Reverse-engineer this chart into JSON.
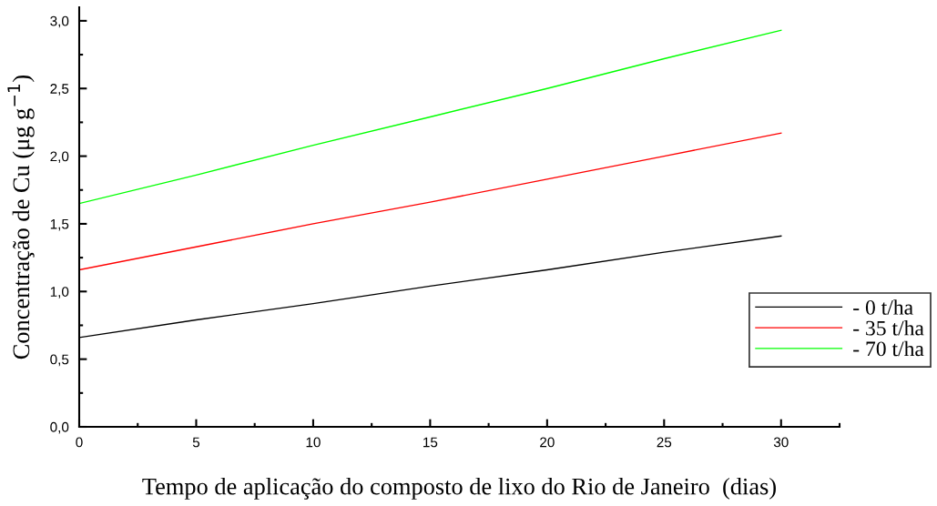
{
  "chart_data": {
    "type": "line",
    "xlabel": "Tempo de aplicação do composto de lixo do Rio de Janeiro  (dias)",
    "ylabel": "Concentração de Cu (μg g$^{−1}$)",
    "x": [
      0,
      5,
      10,
      15,
      20,
      25,
      30
    ],
    "series": [
      {
        "name": "- 0 t/ha",
        "color": "#000000",
        "values": [
          0.66,
          0.79,
          0.91,
          1.04,
          1.16,
          1.29,
          1.41
        ]
      },
      {
        "name": "- 35 t/ha",
        "color": "#ff0000",
        "values": [
          1.16,
          1.33,
          1.5,
          1.66,
          1.83,
          2.0,
          2.17
        ]
      },
      {
        "name": "- 70 t/ha",
        "color": "#00ff00",
        "values": [
          1.65,
          1.86,
          2.08,
          2.29,
          2.5,
          2.72,
          2.93
        ]
      }
    ],
    "xlim": [
      0,
      32.5
    ],
    "ylim": [
      0,
      3.1
    ],
    "xticks": [
      0,
      {
        "value": 2.5,
        "label": null
      },
      5,
      {
        "value": 7.5,
        "label": null
      },
      10,
      {
        "value": 12.5,
        "label": null
      },
      15,
      {
        "value": 17.5,
        "label": null
      },
      20,
      {
        "value": 22.5,
        "label": null
      },
      25,
      {
        "value": 27.5,
        "label": null
      },
      30,
      {
        "value": 32.5,
        "label": null
      }
    ],
    "yticks": [
      {
        "value": 0,
        "label": "0,0"
      },
      {
        "value": 0.25,
        "label": null
      },
      {
        "value": 0.5,
        "label": "0,5"
      },
      {
        "value": 0.75,
        "label": null
      },
      {
        "value": 1.0,
        "label": "1,0"
      },
      {
        "value": 1.25,
        "label": null
      },
      {
        "value": 1.5,
        "label": "1,5"
      },
      {
        "value": 1.75,
        "label": null
      },
      {
        "value": 2.0,
        "label": "2,0"
      },
      {
        "value": 2.25,
        "label": null
      },
      {
        "value": 2.5,
        "label": "2,5"
      },
      {
        "value": 2.75,
        "label": null
      },
      {
        "value": 3.0,
        "label": "3,0"
      }
    ],
    "grid": false,
    "legend": "right",
    "marker": "none",
    "line_style": "solid"
  }
}
